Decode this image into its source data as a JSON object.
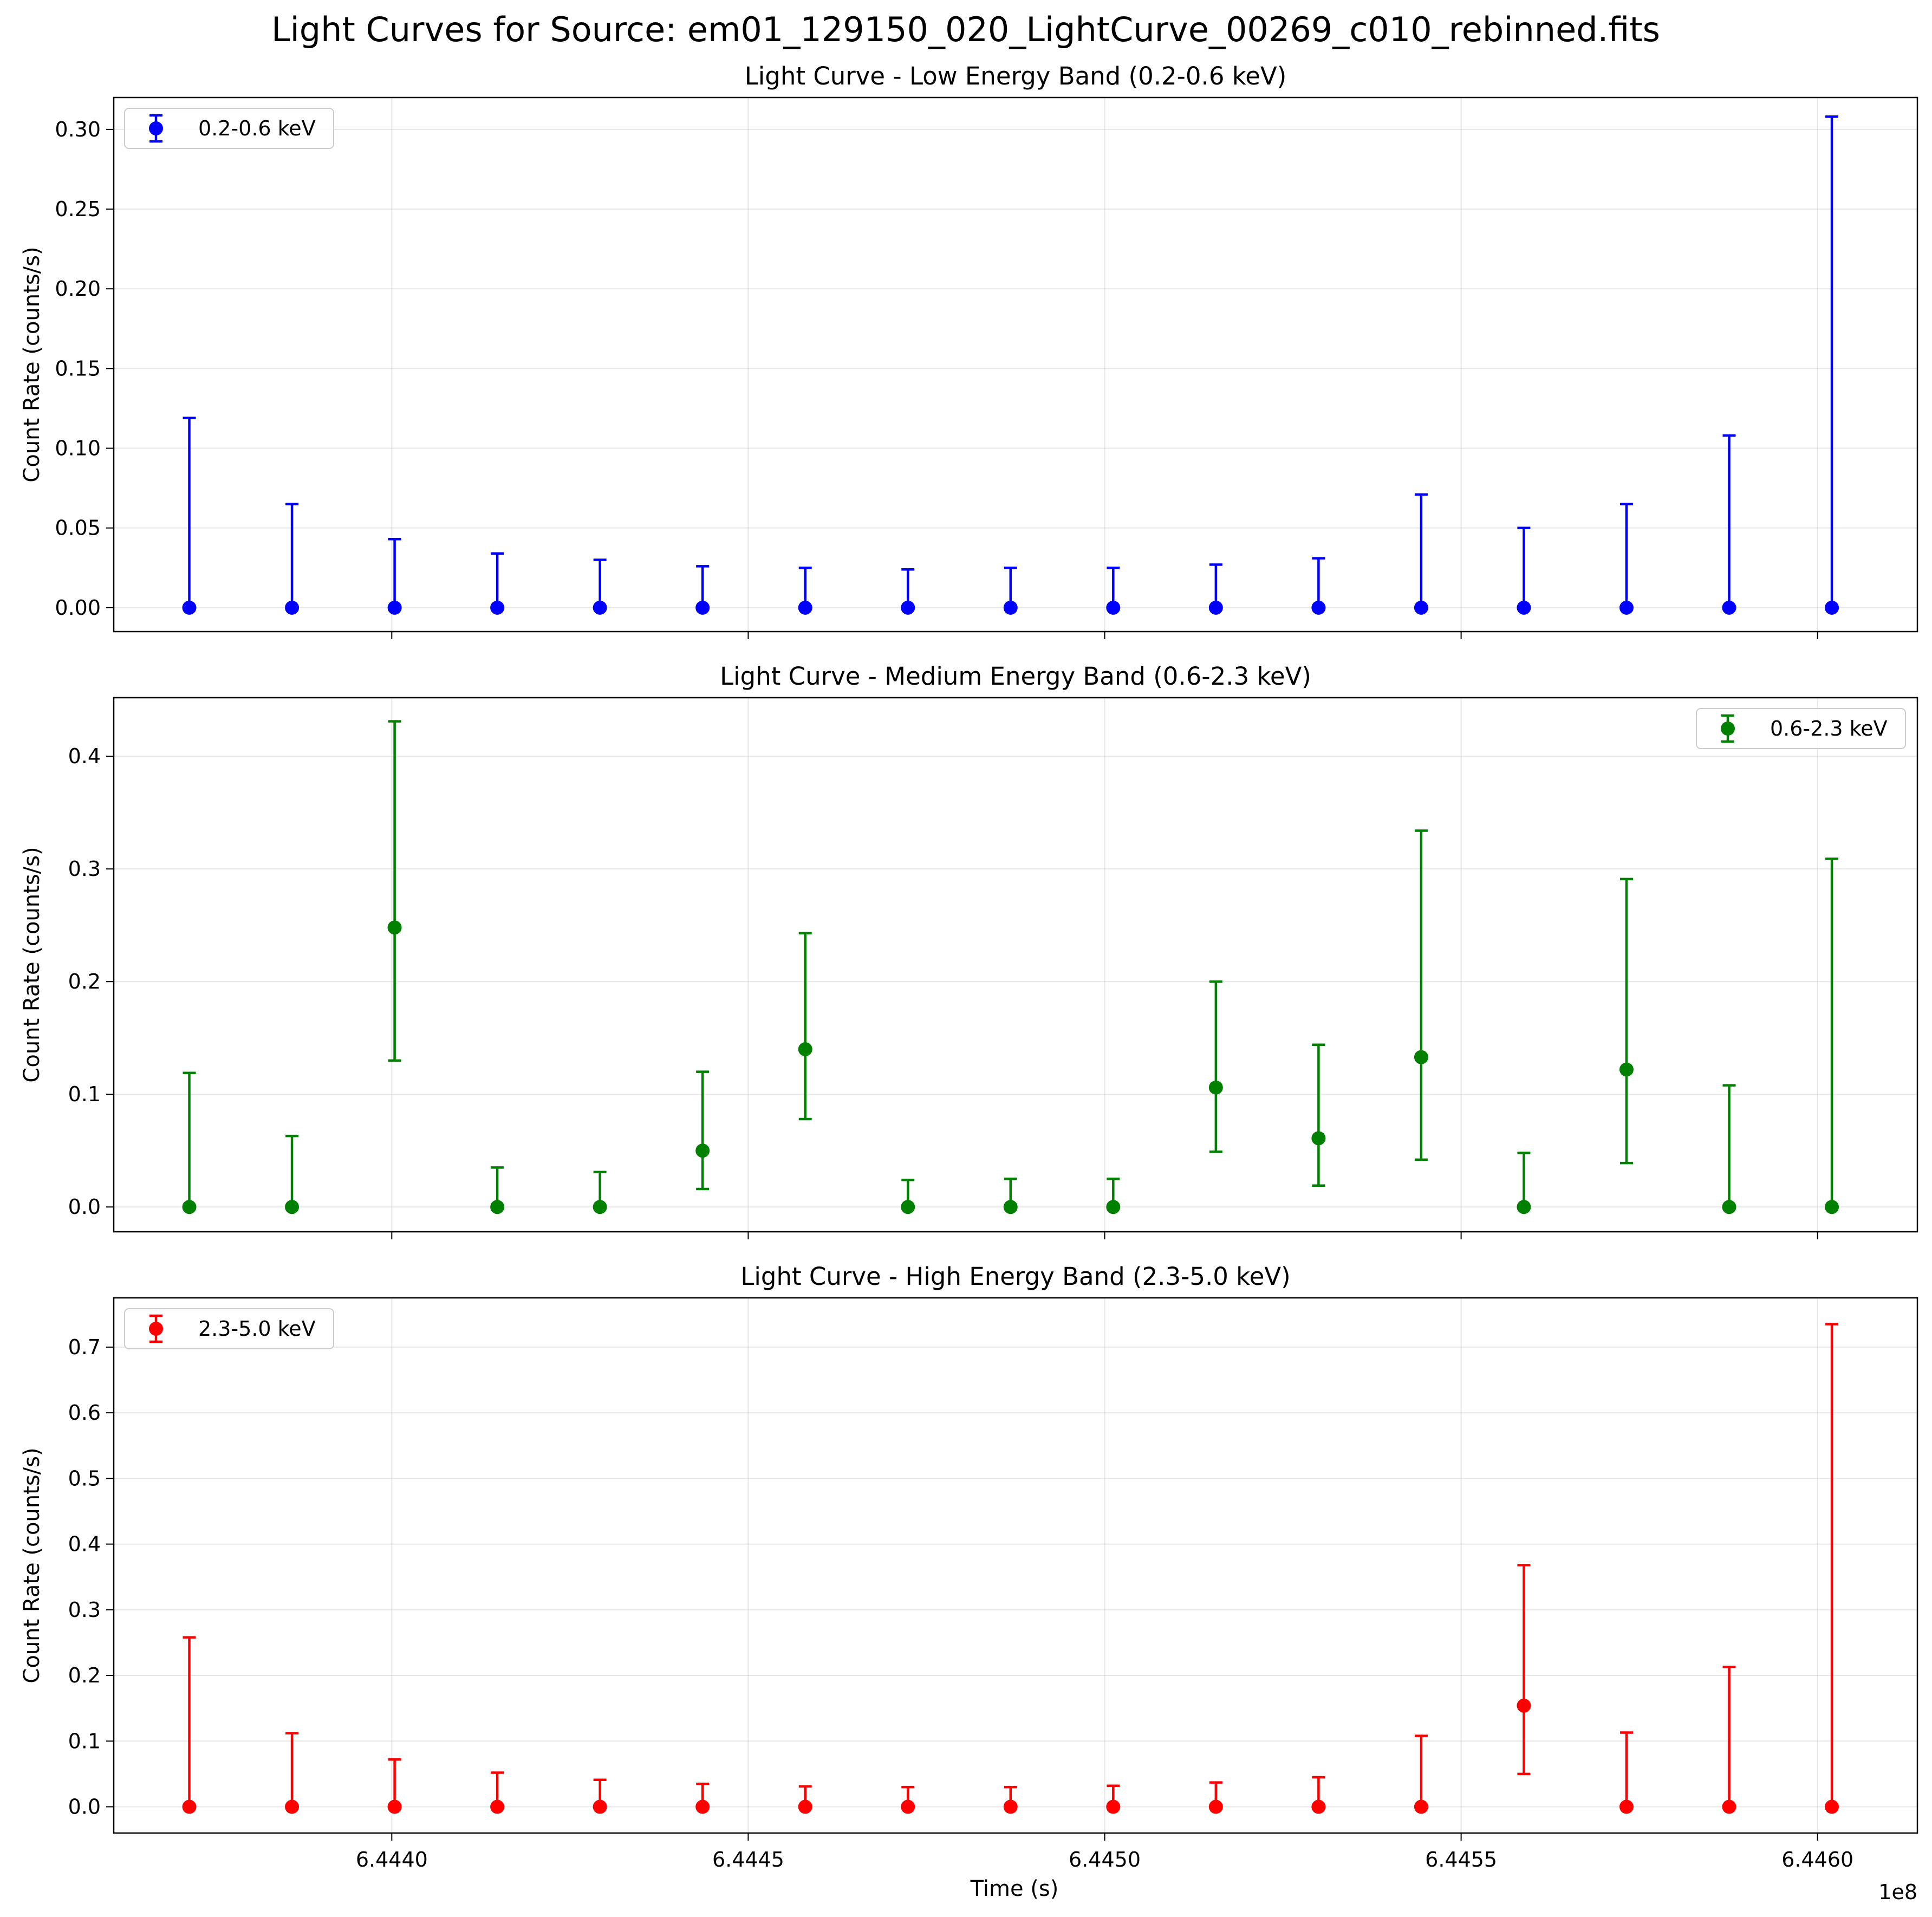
{
  "figure": {
    "title": "Light Curves for Source: em01_129150_020_LightCurve_00269_c010_rebinned.fits",
    "xlabel": "Time (s)",
    "x_offset_text": "1e8"
  },
  "chart_data": [
    {
      "type": "scatter",
      "title": "Light Curve - Low Energy Band (0.2-0.6 keV)",
      "xlabel": "",
      "ylabel": "Count Rate (counts/s)",
      "ylim": [
        -0.015,
        0.32
      ],
      "xlim": [
        6.44361,
        6.44614
      ],
      "x_ticks": [
        6.444,
        6.4445,
        6.445,
        6.4455,
        6.446
      ],
      "x_tick_labels": [],
      "y_ticks": [
        0.0,
        0.05,
        0.1,
        0.15,
        0.2,
        0.25,
        0.3
      ],
      "y_tick_labels": [
        "0.00",
        "0.05",
        "0.10",
        "0.15",
        "0.20",
        "0.25",
        "0.30"
      ],
      "grid": true,
      "legend_position": "upper left",
      "series": [
        {
          "name": "0.2-0.6 keV",
          "color": "#0000ff",
          "x": [
            6.443716,
            6.44386,
            6.444004,
            6.444148,
            6.444292,
            6.444436,
            6.44458,
            6.444724,
            6.444868,
            6.445012,
            6.445156,
            6.4453,
            6.445444,
            6.445588,
            6.445732,
            6.445876,
            6.44602
          ],
          "y": [
            0,
            0,
            0,
            0,
            0,
            0,
            0,
            0,
            0,
            0,
            0,
            0,
            0,
            0,
            0,
            0,
            0
          ],
          "err_low": [
            0,
            0,
            0,
            0,
            0,
            0,
            0,
            0,
            0,
            0,
            0,
            0,
            0,
            0,
            0,
            0,
            0
          ],
          "err_high": [
            0.119,
            0.065,
            0.043,
            0.034,
            0.03,
            0.026,
            0.025,
            0.024,
            0.025,
            0.025,
            0.027,
            0.031,
            0.071,
            0.05,
            0.065,
            0.108,
            0.308
          ]
        }
      ]
    },
    {
      "type": "scatter",
      "title": "Light Curve - Medium Energy Band (0.6-2.3 keV)",
      "xlabel": "",
      "ylabel": "Count Rate (counts/s)",
      "ylim": [
        -0.022,
        0.452
      ],
      "xlim": [
        6.44361,
        6.44614
      ],
      "x_ticks": [
        6.444,
        6.4445,
        6.445,
        6.4455,
        6.446
      ],
      "x_tick_labels": [],
      "y_ticks": [
        0.0,
        0.1,
        0.2,
        0.3,
        0.4
      ],
      "y_tick_labels": [
        "0.0",
        "0.1",
        "0.2",
        "0.3",
        "0.4"
      ],
      "grid": true,
      "legend_position": "upper right",
      "series": [
        {
          "name": "0.6-2.3 keV",
          "color": "#008000",
          "x": [
            6.443716,
            6.44386,
            6.444004,
            6.444148,
            6.444292,
            6.444436,
            6.44458,
            6.444724,
            6.444868,
            6.445012,
            6.445156,
            6.4453,
            6.445444,
            6.445588,
            6.445732,
            6.445876,
            6.44602
          ],
          "y": [
            0,
            0,
            0.248,
            0,
            0,
            0.05,
            0.14,
            0,
            0,
            0,
            0.106,
            0.061,
            0.133,
            0,
            0.122,
            0,
            0
          ],
          "err_low": [
            0,
            0,
            0.118,
            0,
            0,
            0.034,
            0.062,
            0,
            0,
            0,
            0.057,
            0.042,
            0.091,
            0,
            0.083,
            0,
            0
          ],
          "err_high": [
            0.119,
            0.063,
            0.431,
            0.035,
            0.031,
            0.12,
            0.243,
            0.024,
            0.025,
            0.025,
            0.2,
            0.144,
            0.334,
            0.048,
            0.291,
            0.108,
            0.309
          ]
        }
      ]
    },
    {
      "type": "scatter",
      "title": "Light Curve - High Energy Band (2.3-5.0 keV)",
      "xlabel": "Time (s)",
      "ylabel": "Count Rate (counts/s)",
      "ylim": [
        -0.04,
        0.775
      ],
      "xlim": [
        6.44361,
        6.44614
      ],
      "x_ticks": [
        6.444,
        6.4445,
        6.445,
        6.4455,
        6.446
      ],
      "x_tick_labels": [
        "6.4440",
        "6.4445",
        "6.4450",
        "6.4455",
        "6.4460"
      ],
      "y_ticks": [
        0.0,
        0.1,
        0.2,
        0.3,
        0.4,
        0.5,
        0.6,
        0.7
      ],
      "y_tick_labels": [
        "0.0",
        "0.1",
        "0.2",
        "0.3",
        "0.4",
        "0.5",
        "0.6",
        "0.7"
      ],
      "grid": true,
      "legend_position": "upper left",
      "series": [
        {
          "name": "2.3-5.0 keV",
          "color": "#ff0000",
          "x": [
            6.443716,
            6.44386,
            6.444004,
            6.444148,
            6.444292,
            6.444436,
            6.44458,
            6.444724,
            6.444868,
            6.445012,
            6.445156,
            6.4453,
            6.445444,
            6.445588,
            6.445732,
            6.445876,
            6.44602
          ],
          "y": [
            0,
            0,
            0,
            0,
            0,
            0,
            0,
            0,
            0,
            0,
            0,
            0,
            0,
            0.154,
            0,
            0,
            0
          ],
          "err_low": [
            0,
            0,
            0,
            0,
            0,
            0,
            0,
            0,
            0,
            0,
            0,
            0,
            0,
            0.104,
            0,
            0,
            0
          ],
          "err_high": [
            0.258,
            0.112,
            0.072,
            0.052,
            0.041,
            0.035,
            0.031,
            0.03,
            0.03,
            0.032,
            0.037,
            0.045,
            0.108,
            0.368,
            0.113,
            0.213,
            0.735
          ]
        }
      ]
    }
  ]
}
